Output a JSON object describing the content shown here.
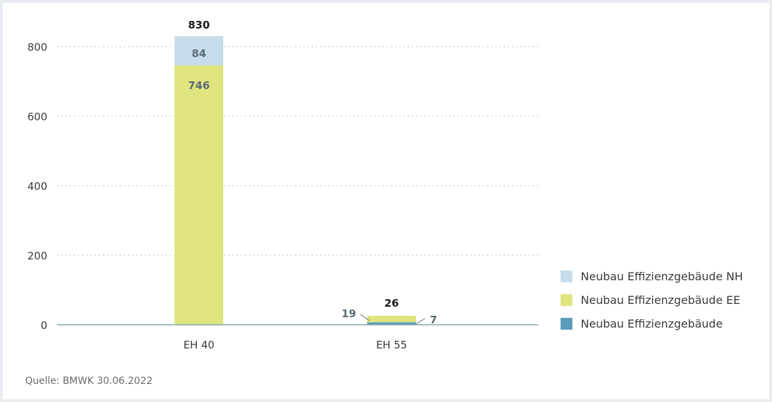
{
  "chart_data": {
    "type": "bar",
    "stacked": true,
    "categories": [
      "EH 40",
      "EH 55"
    ],
    "series": [
      {
        "name": "Neubau Effizienzgebäude",
        "color": "#5b9bbb",
        "values": [
          0,
          7
        ],
        "labels": [
          "",
          "7"
        ]
      },
      {
        "name": "Neubau Effizienzgebäude EE",
        "color": "#dfe47f",
        "values": [
          746,
          19
        ],
        "labels": [
          "746",
          "19"
        ]
      },
      {
        "name": "Neubau Effizienzgebäude NH",
        "color": "#c6dceb",
        "values": [
          84,
          0
        ],
        "labels": [
          "84",
          ""
        ]
      }
    ],
    "totals": [
      "830",
      "26"
    ],
    "ylim": [
      0,
      900
    ],
    "yticks": [
      "0",
      "200",
      "400",
      "600",
      "800"
    ],
    "ytick_values": [
      0,
      200,
      400,
      600,
      800
    ],
    "grid": true,
    "legend_position": "bottom-right"
  },
  "legend": [
    {
      "label": "Neubau Effizienzgebäude NH",
      "color": "#c6dceb"
    },
    {
      "label": "Neubau Effizienzgebäude EE",
      "color": "#dfe47f"
    },
    {
      "label": "Neubau Effizienzgebäude",
      "color": "#5b9bbb"
    }
  ],
  "source": "Quelle: BMWK 30.06.2022"
}
